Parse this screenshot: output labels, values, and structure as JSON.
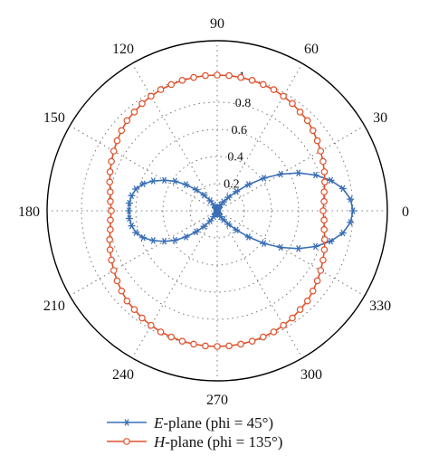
{
  "chart_data": {
    "type": "polar_line",
    "angle_unit": "deg",
    "angle_ticks": [
      "0",
      "30",
      "60",
      "90",
      "120",
      "150",
      "180",
      "210",
      "240",
      "270",
      "300",
      "330"
    ],
    "radial_ticks": [
      "0.2",
      "0.4",
      "0.6",
      "0.8",
      "1"
    ],
    "rlim": [
      0,
      1
    ],
    "grid": true,
    "legend_position": "bottom",
    "series": [
      {
        "name_prefix": "E",
        "name_suffix": "-plane (phi = 45°)",
        "color": "#3a6fb5",
        "marker": "asterisk",
        "theta": [
          0,
          5,
          10,
          15,
          20,
          25,
          30,
          35,
          40,
          45,
          50,
          55,
          60,
          65,
          70,
          75,
          80,
          85,
          90,
          95,
          100,
          105,
          110,
          115,
          120,
          125,
          130,
          135,
          140,
          145,
          150,
          155,
          160,
          165,
          170,
          175,
          180,
          185,
          190,
          195,
          200,
          205,
          210,
          215,
          220,
          225,
          230,
          235,
          240,
          245,
          250,
          255,
          260,
          265,
          270,
          275,
          280,
          285,
          290,
          295,
          300,
          305,
          310,
          315,
          320,
          325,
          330,
          335,
          340,
          345,
          350,
          355
        ],
        "r": [
          1.0,
          0.985,
          0.94,
          0.866,
          0.77,
          0.66,
          0.54,
          0.42,
          0.3,
          0.2,
          0.13,
          0.08,
          0.05,
          0.03,
          0.02,
          0.015,
          0.01,
          0.005,
          0.0,
          0.005,
          0.01,
          0.015,
          0.02,
          0.03,
          0.05,
          0.09,
          0.15,
          0.22,
          0.3,
          0.38,
          0.45,
          0.52,
          0.58,
          0.62,
          0.64,
          0.65,
          0.65,
          0.65,
          0.64,
          0.62,
          0.58,
          0.52,
          0.45,
          0.38,
          0.3,
          0.22,
          0.15,
          0.09,
          0.05,
          0.03,
          0.02,
          0.015,
          0.01,
          0.005,
          0.0,
          0.005,
          0.01,
          0.015,
          0.02,
          0.03,
          0.05,
          0.08,
          0.13,
          0.2,
          0.3,
          0.42,
          0.54,
          0.66,
          0.77,
          0.866,
          0.94,
          0.985
        ]
      },
      {
        "name_prefix": "H",
        "name_suffix": "-plane (phi = 135°)",
        "color": "#e0502a",
        "marker": "circle",
        "theta": [
          0,
          5,
          10,
          15,
          20,
          25,
          30,
          35,
          40,
          45,
          50,
          55,
          60,
          65,
          70,
          75,
          80,
          85,
          90,
          95,
          100,
          105,
          110,
          115,
          120,
          125,
          130,
          135,
          140,
          145,
          150,
          155,
          160,
          165,
          170,
          175,
          180,
          185,
          190,
          195,
          200,
          205,
          210,
          215,
          220,
          225,
          230,
          235,
          240,
          245,
          250,
          255,
          260,
          265,
          270,
          275,
          280,
          285,
          290,
          295,
          300,
          305,
          310,
          315,
          320,
          325,
          330,
          335,
          340,
          345,
          350,
          355
        ],
        "r": [
          0.78,
          0.79,
          0.8,
          0.82,
          0.84,
          0.86,
          0.88,
          0.9,
          0.92,
          0.94,
          0.95,
          0.965,
          0.975,
          0.985,
          0.99,
          0.995,
          0.998,
          1.0,
          1.0,
          1.0,
          0.998,
          0.995,
          0.99,
          0.985,
          0.975,
          0.965,
          0.95,
          0.94,
          0.92,
          0.9,
          0.88,
          0.86,
          0.84,
          0.82,
          0.8,
          0.79,
          0.78,
          0.79,
          0.8,
          0.82,
          0.84,
          0.86,
          0.88,
          0.9,
          0.92,
          0.94,
          0.95,
          0.965,
          0.975,
          0.985,
          0.99,
          0.995,
          0.998,
          1.0,
          1.0,
          1.0,
          0.998,
          0.995,
          0.99,
          0.985,
          0.975,
          0.965,
          0.95,
          0.94,
          0.92,
          0.9,
          0.88,
          0.86,
          0.84,
          0.82,
          0.8,
          0.79
        ]
      }
    ]
  }
}
